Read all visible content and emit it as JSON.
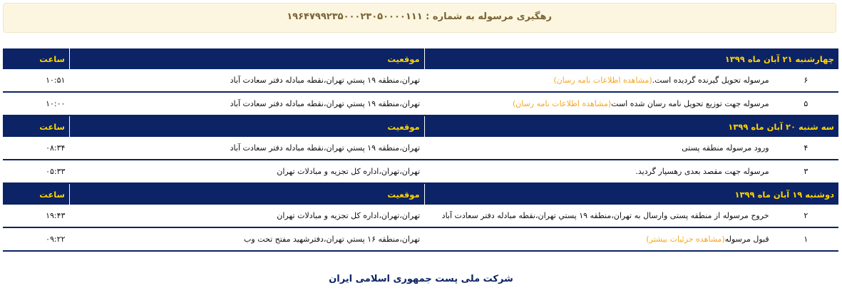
{
  "banner": {
    "title": "رهگیری مرسوله به شماره : ۱۹۶۴۷۹۹۲۳۵۰۰۰۲۳۰۵۰۰۰۰۱۱۱"
  },
  "headers": {
    "location": "موقعیت",
    "time": "ساعت"
  },
  "groups": [
    {
      "date": "چهارشنبه ۲۱ آبان ماه ۱۳۹۹",
      "rows": [
        {
          "num": "۶",
          "desc": "مرسوله تحویل گیرنده گردیده است.",
          "link": "(مشاهده اطلاعات نامه رسان)",
          "location": "تهران،منطقه ۱۹ پستي تهران،نقطه مبادله دفتر سعادت آباد",
          "time": "۱۰:۵۱"
        },
        {
          "num": "۵",
          "desc": "مرسوله جهت توزیع تحویل نامه رسان شده است",
          "link": "(مشاهده اطلاعات نامه رسان)",
          "location": "تهران،منطقه ۱۹ پستي تهران،نقطه مبادله دفتر سعادت آباد",
          "time": "۱۰:۰۰"
        }
      ]
    },
    {
      "date": "سه شنبه ۲۰ آبان ماه ۱۳۹۹",
      "rows": [
        {
          "num": "۴",
          "desc": "ورود مرسوله منطقه پستی",
          "link": "",
          "location": "تهران،منطقه ۱۹ پستي تهران،نقطه مبادله دفتر سعادت آباد",
          "time": "۰۸:۳۴"
        },
        {
          "num": "۳",
          "desc": "مرسوله جهت مقصد بعدی رهسپار گردید.",
          "link": "",
          "location": "تهران،تهران،اداره کل تجزیه و مبادلات تهران",
          "time": "۰۵:۳۳"
        }
      ]
    },
    {
      "date": "دوشنبه ۱۹ آبان ماه ۱۳۹۹",
      "rows": [
        {
          "num": "۲",
          "desc": "خروج مرسوله از منطقه پستی وارسال به تهران،منطقه ۱۹ پستي تهران،نقطه مبادله دفتر سعادت آباد",
          "link": "",
          "location": "تهران،تهران،اداره کل تجزیه و مبادلات تهران",
          "time": "۱۹:۴۳"
        },
        {
          "num": "۱",
          "desc": "قبول مرسوله",
          "link": "(مشاهده جزئیات بیشتر)",
          "location": "تهران،منطقه ۱۶ پستي تهران،دفترشهید مفتح تحت وب",
          "time": "۰۹:۲۲"
        }
      ]
    }
  ],
  "footer": "شرکت ملی پست جمهوری اسلامی ایران",
  "colors": {
    "navy": "#0c2365",
    "yellow": "#ffd400",
    "link": "#f5a623"
  }
}
